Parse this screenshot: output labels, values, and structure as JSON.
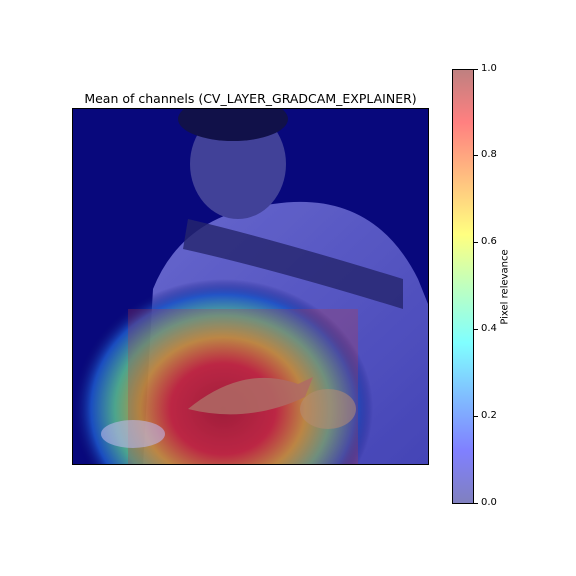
{
  "chart_data": {
    "type": "heatmap",
    "title": "Mean of channels (CV_LAYER_GRADCAM_EXPLAINER)",
    "colorbar": {
      "label": "Pixel relevance",
      "range": [
        0.0,
        1.0
      ],
      "ticks": [
        "0.0",
        "0.2",
        "0.4",
        "0.6",
        "0.8",
        "1.0"
      ],
      "colormap": "jet",
      "alpha": 0.5
    },
    "overlay": "Grad-CAM relevance heatmap over photograph of a man holding a fish",
    "hotspot": {
      "region": "lower-left, over the fish and hands",
      "max_relevance": 1.0
    },
    "axes_visible": false
  }
}
